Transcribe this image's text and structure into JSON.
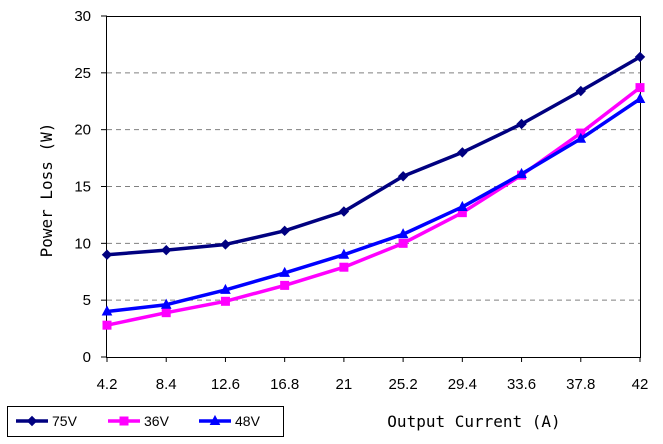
{
  "chart_data": {
    "type": "line",
    "x": [
      "4.2",
      "8.4",
      "12.6",
      "16.8",
      "21",
      "25.2",
      "29.4",
      "33.6",
      "37.8",
      "42"
    ],
    "xlabel": "Output Current (A)",
    "ylabel": "Power Loss (W)",
    "ylim": [
      0,
      30
    ],
    "y_ticks": [
      "0",
      "5",
      "10",
      "15",
      "20",
      "25",
      "30"
    ],
    "grid": "horizontal dashed",
    "legend_position": "bottom-left",
    "series": [
      {
        "name": "75V",
        "color": "#000080",
        "marker": "diamond",
        "values": [
          9.0,
          9.4,
          9.9,
          11.1,
          12.8,
          15.9,
          18.0,
          20.5,
          23.4,
          26.4
        ]
      },
      {
        "name": "36V",
        "color": "#ff00ff",
        "marker": "square",
        "values": [
          2.8,
          3.9,
          4.9,
          6.3,
          7.9,
          10.0,
          12.7,
          16.0,
          19.7,
          23.7
        ]
      },
      {
        "name": "48V",
        "color": "#0000ff",
        "marker": "triangle",
        "values": [
          4.0,
          4.6,
          5.9,
          7.4,
          9.0,
          10.8,
          13.2,
          16.1,
          19.2,
          22.7
        ]
      }
    ]
  }
}
